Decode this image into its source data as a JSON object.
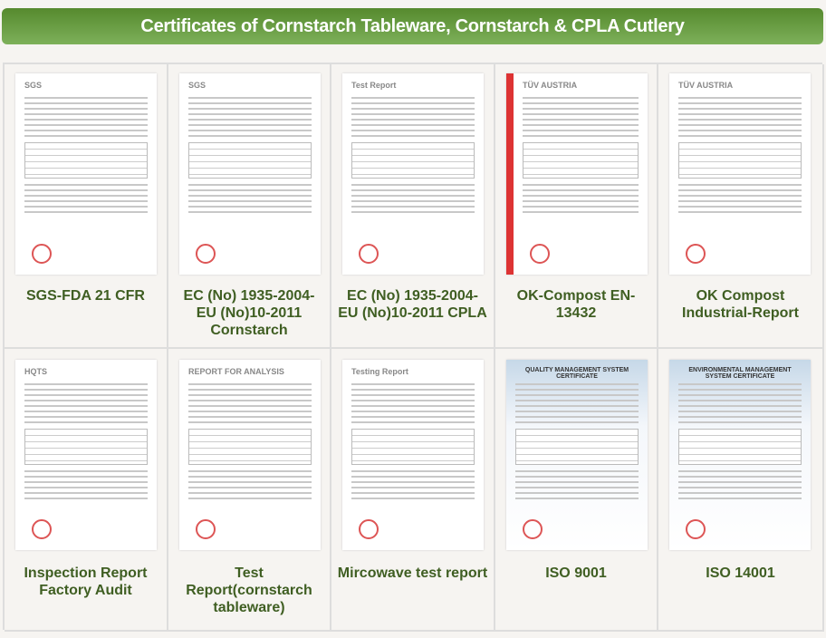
{
  "header": {
    "title": "Certificates of Cornstarch Tableware, Cornstarch & CPLA Cutlery"
  },
  "certificates": [
    {
      "label": "SGS-FDA 21 CFR",
      "doc_header": "SGS"
    },
    {
      "label": "EC (No) 1935-2004-EU (No)10-2011 Cornstarch",
      "doc_header": "SGS"
    },
    {
      "label": "EC (No) 1935-2004-EU (No)10-2011 CPLA",
      "doc_header": "Test Report"
    },
    {
      "label": "OK-Compost EN-13432",
      "doc_header": "TÜV AUSTRIA"
    },
    {
      "label": "OK Compost Industrial-Report",
      "doc_header": "TÜV AUSTRIA"
    },
    {
      "label": "Inspection Report Factory Audit",
      "doc_header": "HQTS"
    },
    {
      "label": "Test Report(cornstarch tableware)",
      "doc_header": "REPORT FOR ANALYSIS"
    },
    {
      "label": "Mircowave test report",
      "doc_header": "Testing Report"
    },
    {
      "label": "ISO 9001",
      "doc_header": "QUALITY MANAGEMENT SYSTEM CERTIFICATE"
    },
    {
      "label": "ISO 14001",
      "doc_header": "ENVIRONMENTAL MANAGEMENT SYSTEM CERTIFICATE"
    }
  ]
}
